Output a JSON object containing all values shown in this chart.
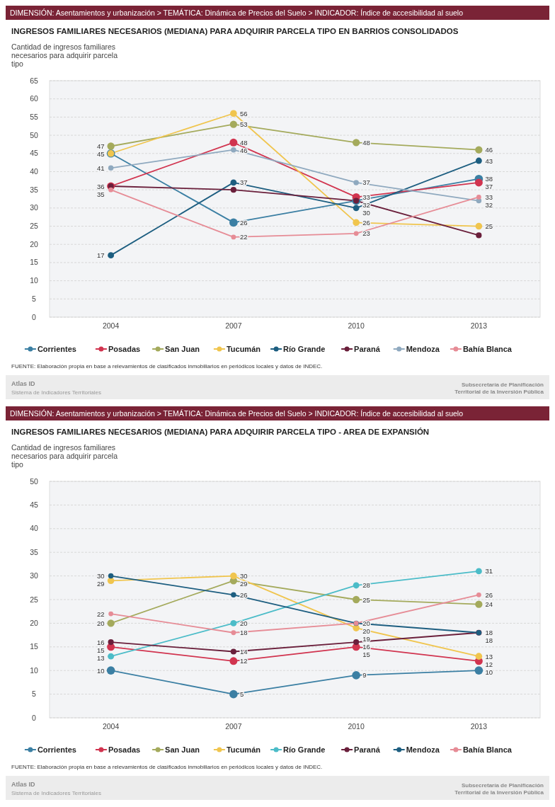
{
  "chart_data": [
    {
      "type": "line",
      "subtitle": "DIMENSIÓN: Asentamientos y urbanización > TEMÁTICA: Dinámica de Precios del Suelo > INDICADOR: Índice de accesibilidad al suelo",
      "title": "INGRESOS FAMILIARES NECESARIOS (MEDIANA) PARA ADQUIRIR PARCELA TIPO EN  BARRIOS CONSOLIDADOS",
      "ylabel": "Cantidad de ingresos familiares necesarios para adquirir parcela tipo",
      "categories": [
        "2004",
        "2007",
        "2010",
        "2013"
      ],
      "ylim": [
        0,
        65
      ],
      "yticks": [
        0,
        5,
        10,
        15,
        20,
        25,
        30,
        35,
        40,
        45,
        50,
        55,
        60,
        65
      ],
      "grid": "y",
      "legend": "bottom",
      "marker": "circle",
      "series": [
        {
          "name": "Corrientes",
          "color": "#3b7fa3",
          "values": [
            45,
            26,
            32,
            38
          ],
          "value_labels": [
            "45",
            "26",
            null,
            "38"
          ]
        },
        {
          "name": "Posadas",
          "color": "#d1344f",
          "values": [
            36,
            48,
            33,
            37
          ],
          "value_labels": [
            null,
            "48",
            "33",
            "37"
          ]
        },
        {
          "name": "San Juan",
          "color": "#a4aa5c",
          "values": [
            47,
            53,
            48,
            46
          ],
          "value_labels": [
            "47",
            "53",
            "48",
            "46"
          ]
        },
        {
          "name": "Tucumán",
          "color": "#f0c54e",
          "values": [
            45,
            56,
            26,
            25
          ],
          "value_labels": [
            null,
            "56",
            "26",
            "25"
          ]
        },
        {
          "name": "Río Grande",
          "color": "#1d5e80",
          "values": [
            17,
            37,
            30,
            43
          ],
          "value_labels": [
            "17",
            "37",
            "30",
            "43"
          ]
        },
        {
          "name": "Paraná",
          "color": "#6a1f3b",
          "values": [
            36,
            35,
            32,
            22.5
          ],
          "value_labels": [
            "36",
            null,
            "32",
            null
          ]
        },
        {
          "name": "Mendoza",
          "color": "#8fa9bf",
          "values": [
            41,
            46,
            37,
            32
          ],
          "value_labels": [
            "41",
            "46",
            "37",
            "32"
          ]
        },
        {
          "name": "Bahía Blanca",
          "color": "#e68c96",
          "values": [
            35,
            22,
            23,
            33
          ],
          "value_labels": [
            "35",
            "22",
            "23",
            "33"
          ]
        }
      ],
      "annotations": [
        "FUENTE: Elaboración propia en base a relevamientos de clasificados inmobiliarios en periódicos locales y datos de INDEC.",
        "Atlas ID",
        "Sistema de Indicadores Territoriales",
        "Subsecretaría de Planificación Territorial de la Inversión Pública"
      ]
    },
    {
      "type": "line",
      "subtitle": "DIMENSIÓN: Asentamientos y urbanización > TEMÁTICA: Dinámica de Precios del Suelo > INDICADOR: Índice de accesibilidad al suelo",
      "title": "INGRESOS FAMILIARES NECESARIOS (MEDIANA) PARA ADQUIRIR PARCELA TIPO - AREA DE EXPANSIÓN",
      "ylabel": "Cantidad de ingresos familiares necesarios para adquirir parcela tipo",
      "categories": [
        "2004",
        "2007",
        "2010",
        "2013"
      ],
      "ylim": [
        0,
        50
      ],
      "yticks": [
        0,
        5,
        10,
        15,
        20,
        25,
        30,
        35,
        40,
        45,
        50
      ],
      "grid": "y",
      "legend": "bottom",
      "marker": "circle",
      "data_labels": true,
      "series": [
        {
          "name": "Corrientes",
          "color": "#3b7fa3",
          "values": [
            10,
            5,
            9,
            10
          ]
        },
        {
          "name": "Posadas",
          "color": "#d1344f",
          "values": [
            15,
            12,
            15,
            12
          ]
        },
        {
          "name": "San Juan",
          "color": "#a4aa5c",
          "values": [
            20,
            29,
            25,
            24
          ]
        },
        {
          "name": "Tucumán",
          "color": "#f0c54e",
          "values": [
            29,
            30,
            19,
            13
          ]
        },
        {
          "name": "Río Grande",
          "color": "#4bbcc8",
          "values": [
            13,
            20,
            28,
            31
          ]
        },
        {
          "name": "Paraná",
          "color": "#6a1f3b",
          "values": [
            16,
            14,
            16,
            18
          ]
        },
        {
          "name": "Mendoza",
          "color": "#1d5e80",
          "values": [
            30,
            26,
            20,
            18
          ]
        },
        {
          "name": "Bahía Blanca",
          "color": "#e68c96",
          "values": [
            22,
            18,
            20,
            26
          ]
        }
      ],
      "annotations": [
        "FUENTE: Elaboración propia en base a relevamientos de clasificados inmobiliarios en periódicos locales y datos de INDEC.",
        "Atlas ID",
        "Sistema de Indicadores Territoriales",
        "Subsecretaría de Planificación Territorial de la Inversión Pública"
      ]
    }
  ]
}
